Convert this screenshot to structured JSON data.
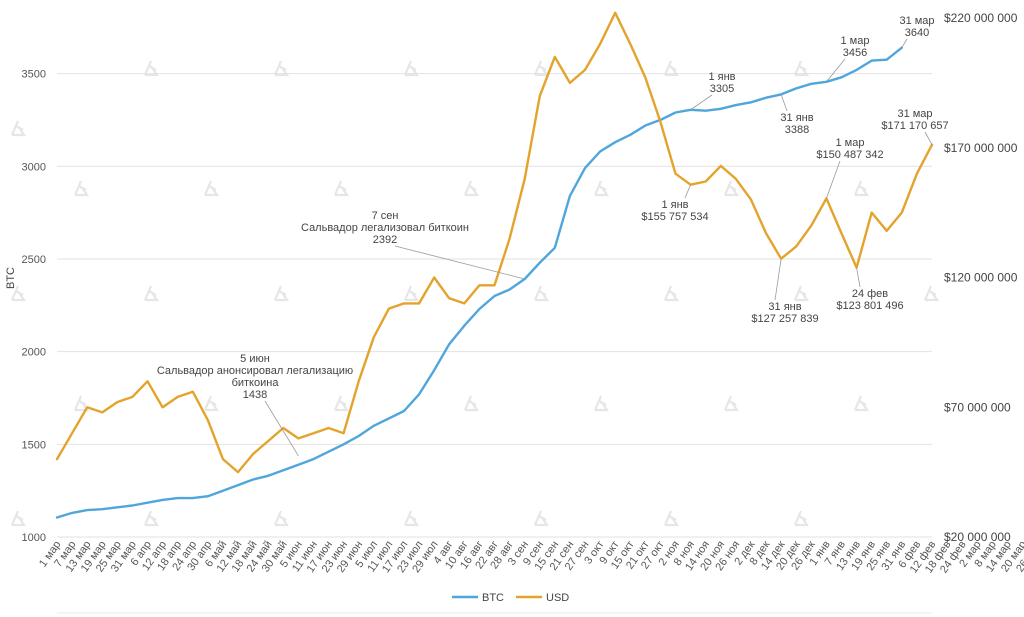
{
  "chart_data": {
    "type": "line",
    "title": "",
    "xlabel": "",
    "ylabel": "BTC",
    "ylim": [
      1000,
      3800
    ],
    "y2lim": [
      20000000,
      220000000
    ],
    "grid": true,
    "legend_position": "bottom-center",
    "yticks": [
      "1000",
      "1500",
      "2000",
      "2500",
      "3000",
      "3500"
    ],
    "y2ticks": [
      "$20 000 000",
      "$70 000 000",
      "$120 000 000",
      "$170 000 000",
      "$220 000 000"
    ],
    "xticks": [
      "1 мар",
      "7 мар",
      "13 мар",
      "19 мар",
      "25 мар",
      "31 мар",
      "6 апр",
      "12 апр",
      "18 апр",
      "24 апр",
      "30 апр",
      "6 май",
      "12 май",
      "18 май",
      "24 май",
      "30 май",
      "5 июн",
      "11 июн",
      "17 июн",
      "23 июн",
      "29 июн",
      "5 июл",
      "11 июл",
      "17 июл",
      "23 июл",
      "29 июл",
      "4 авг",
      "10 авг",
      "16 авг",
      "22 авг",
      "28 авг",
      "3 сен",
      "9 сен",
      "15 сен",
      "21 сен",
      "27 сен",
      "3 окт",
      "9 окт",
      "15 окт",
      "21 окт",
      "27 окт",
      "2 ноя",
      "8 ноя",
      "14 ноя",
      "20 ноя",
      "26 ноя",
      "2 дек",
      "8 дек",
      "14 дек",
      "20 дек",
      "26 дек",
      "1 янв",
      "7 янв",
      "13 янв",
      "19 янв",
      "25 янв",
      "31 янв",
      "6 фев",
      "12 фев",
      "18 фев",
      "24 фев",
      "2 мар",
      "8 мар",
      "14 мар",
      "20 мар",
      "26 мар"
    ],
    "series": [
      {
        "name": "BTC",
        "color": "#4ea6dc",
        "axis": "left",
        "points": [
          [
            0,
            1105
          ],
          [
            6,
            1130
          ],
          [
            12,
            1145
          ],
          [
            18,
            1150
          ],
          [
            24,
            1160
          ],
          [
            30,
            1170
          ],
          [
            36,
            1185
          ],
          [
            42,
            1200
          ],
          [
            48,
            1210
          ],
          [
            54,
            1210
          ],
          [
            60,
            1220
          ],
          [
            66,
            1250
          ],
          [
            72,
            1280
          ],
          [
            78,
            1310
          ],
          [
            84,
            1330
          ],
          [
            90,
            1360
          ],
          [
            96,
            1390
          ],
          [
            102,
            1420
          ],
          [
            108,
            1460
          ],
          [
            114,
            1500
          ],
          [
            120,
            1545
          ],
          [
            126,
            1600
          ],
          [
            132,
            1640
          ],
          [
            138,
            1680
          ],
          [
            144,
            1770
          ],
          [
            150,
            1900
          ],
          [
            156,
            2040
          ],
          [
            162,
            2140
          ],
          [
            168,
            2230
          ],
          [
            174,
            2300
          ],
          [
            180,
            2335
          ],
          [
            186,
            2392
          ],
          [
            192,
            2480
          ],
          [
            198,
            2560
          ],
          [
            204,
            2840
          ],
          [
            210,
            2990
          ],
          [
            216,
            3080
          ],
          [
            222,
            3130
          ],
          [
            228,
            3170
          ],
          [
            234,
            3220
          ],
          [
            240,
            3250
          ],
          [
            246,
            3290
          ],
          [
            252,
            3305
          ],
          [
            258,
            3300
          ],
          [
            264,
            3310
          ],
          [
            270,
            3330
          ],
          [
            276,
            3345
          ],
          [
            282,
            3370
          ],
          [
            288,
            3388
          ],
          [
            294,
            3420
          ],
          [
            300,
            3445
          ],
          [
            306,
            3456
          ],
          [
            312,
            3480
          ],
          [
            318,
            3520
          ],
          [
            324,
            3570
          ],
          [
            330,
            3575
          ],
          [
            336,
            3640
          ]
        ]
      },
      {
        "name": "USD",
        "color": "#e3a32c",
        "axis": "right",
        "points": [
          [
            0,
            50000000
          ],
          [
            6,
            60000000
          ],
          [
            12,
            70000000
          ],
          [
            18,
            68000000
          ],
          [
            24,
            72000000
          ],
          [
            30,
            74000000
          ],
          [
            36,
            80000000
          ],
          [
            42,
            70000000
          ],
          [
            48,
            74000000
          ],
          [
            54,
            76000000
          ],
          [
            60,
            65000000
          ],
          [
            66,
            50000000
          ],
          [
            72,
            45000000
          ],
          [
            78,
            52000000
          ],
          [
            84,
            57000000
          ],
          [
            90,
            62000000
          ],
          [
            96,
            58000000
          ],
          [
            102,
            60000000
          ],
          [
            108,
            62000000
          ],
          [
            114,
            60000000
          ],
          [
            120,
            80000000
          ],
          [
            126,
            97000000
          ],
          [
            132,
            108000000
          ],
          [
            138,
            110000000
          ],
          [
            144,
            110000000
          ],
          [
            150,
            120000000
          ],
          [
            156,
            112000000
          ],
          [
            162,
            110000000
          ],
          [
            168,
            117000000
          ],
          [
            174,
            117000000
          ],
          [
            180,
            135000000
          ],
          [
            186,
            158000000
          ],
          [
            192,
            190000000
          ],
          [
            198,
            205000000
          ],
          [
            204,
            195000000
          ],
          [
            210,
            200000000
          ],
          [
            216,
            210000000
          ],
          [
            222,
            222000000
          ],
          [
            228,
            210000000
          ],
          [
            234,
            197000000
          ],
          [
            240,
            180000000
          ],
          [
            246,
            160000000
          ],
          [
            252,
            155757534
          ],
          [
            258,
            157000000
          ],
          [
            264,
            163000000
          ],
          [
            270,
            158000000
          ],
          [
            276,
            150000000
          ],
          [
            282,
            137000000
          ],
          [
            288,
            127257839
          ],
          [
            294,
            132000000
          ],
          [
            300,
            140000000
          ],
          [
            306,
            150487342
          ],
          [
            312,
            137000000
          ],
          [
            318,
            123801496
          ],
          [
            324,
            145000000
          ],
          [
            330,
            138000000
          ],
          [
            336,
            145000000
          ],
          [
            342,
            160000000
          ],
          [
            348,
            171170657
          ]
        ]
      }
    ],
    "annotations": [
      {
        "lines": [
          "5 июн",
          "Сальвадор анонсировал легализацию",
          "биткоина",
          "1438"
        ]
      },
      {
        "lines": [
          "7 сен",
          "Сальвадор легализовал биткоин",
          "2392"
        ]
      },
      {
        "lines": [
          "1 янв",
          "3305"
        ]
      },
      {
        "lines": [
          "31 янв",
          "3388"
        ]
      },
      {
        "lines": [
          "1 мар",
          "3456"
        ]
      },
      {
        "lines": [
          "31 мар",
          "3640"
        ]
      },
      {
        "lines": [
          "31 мар",
          "$171 170 657"
        ]
      },
      {
        "lines": [
          "1 янв",
          "$155 757 534"
        ]
      },
      {
        "lines": [
          "1 мар",
          "$150 487 342"
        ]
      },
      {
        "lines": [
          "31 янв",
          "$127 257 839"
        ]
      },
      {
        "lines": [
          "24 фев",
          "$123 801 496"
        ]
      }
    ]
  }
}
